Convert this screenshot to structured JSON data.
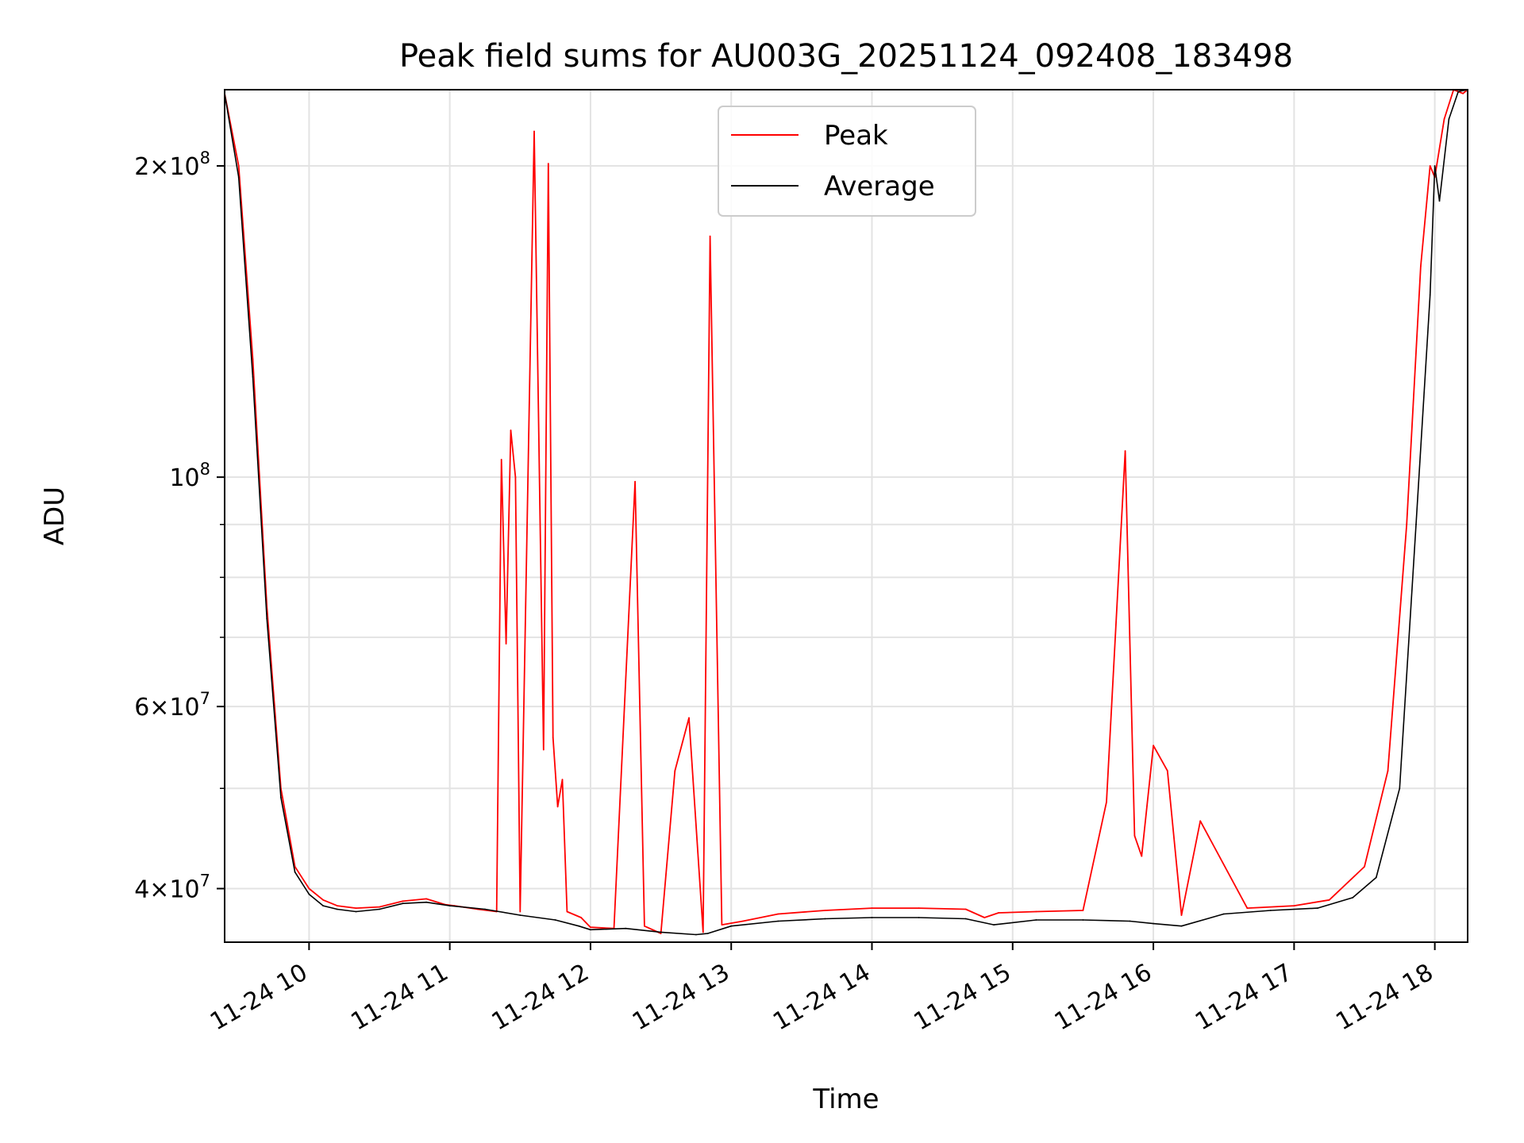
{
  "chart_data": {
    "type": "line",
    "title": "Peak field sums for AU003G_20251124_092408_183498",
    "xlabel": "Time",
    "ylabel": "ADU",
    "yscale": "log",
    "grid": true,
    "legend_position": "top-center",
    "xlim": [
      "2025-11-24 09:24",
      "2025-11-24 18:14"
    ],
    "ylim": [
      35500000,
      237000000
    ],
    "x_ticks": [
      {
        "value": "2025-11-24 10:00",
        "label": "11-24 10"
      },
      {
        "value": "2025-11-24 11:00",
        "label": "11-24 11"
      },
      {
        "value": "2025-11-24 12:00",
        "label": "11-24 12"
      },
      {
        "value": "2025-11-24 13:00",
        "label": "11-24 13"
      },
      {
        "value": "2025-11-24 14:00",
        "label": "11-24 14"
      },
      {
        "value": "2025-11-24 15:00",
        "label": "11-24 15"
      },
      {
        "value": "2025-11-24 16:00",
        "label": "11-24 16"
      },
      {
        "value": "2025-11-24 17:00",
        "label": "11-24 17"
      },
      {
        "value": "2025-11-24 18:00",
        "label": "11-24 18"
      }
    ],
    "y_major_ticks": [
      {
        "value": 40000000,
        "mantissa": "4",
        "exponent": "7"
      },
      {
        "value": 60000000,
        "mantissa": "6",
        "exponent": "7"
      },
      {
        "value": 100000000,
        "mantissa": "",
        "exponent": "8"
      },
      {
        "value": 200000000,
        "mantissa": "2",
        "exponent": "8"
      }
    ],
    "y_minor_ticks": [
      50000000,
      70000000,
      80000000,
      90000000
    ],
    "series": [
      {
        "name": "Peak",
        "color": "#ff0000",
        "x": [
          "2025-11-24 09:24",
          "2025-11-24 09:30",
          "2025-11-24 09:36",
          "2025-11-24 09:42",
          "2025-11-24 09:48",
          "2025-11-24 09:54",
          "2025-11-24 10:00",
          "2025-11-24 10:06",
          "2025-11-24 10:12",
          "2025-11-24 10:20",
          "2025-11-24 10:30",
          "2025-11-24 10:40",
          "2025-11-24 10:50",
          "2025-11-24 10:58",
          "2025-11-24 11:02",
          "2025-11-24 11:12",
          "2025-11-24 11:20",
          "2025-11-24 11:22",
          "2025-11-24 11:24",
          "2025-11-24 11:26",
          "2025-11-24 11:28",
          "2025-11-24 11:30",
          "2025-11-24 11:36",
          "2025-11-24 11:40",
          "2025-11-24 11:42",
          "2025-11-24 11:44",
          "2025-11-24 11:46",
          "2025-11-24 11:48",
          "2025-11-24 11:50",
          "2025-11-24 11:56",
          "2025-11-24 12:00",
          "2025-11-24 12:10",
          "2025-11-24 12:19",
          "2025-11-24 12:23",
          "2025-11-24 12:30",
          "2025-11-24 12:36",
          "2025-11-24 12:42",
          "2025-11-24 12:48",
          "2025-11-24 12:51",
          "2025-11-24 12:56",
          "2025-11-24 13:05",
          "2025-11-24 13:20",
          "2025-11-24 13:40",
          "2025-11-24 14:00",
          "2025-11-24 14:20",
          "2025-11-24 14:40",
          "2025-11-24 14:48",
          "2025-11-24 14:54",
          "2025-11-24 15:10",
          "2025-11-24 15:30",
          "2025-11-24 15:40",
          "2025-11-24 15:48",
          "2025-11-24 15:52",
          "2025-11-24 15:55",
          "2025-11-24 16:00",
          "2025-11-24 16:06",
          "2025-11-24 16:12",
          "2025-11-24 16:20",
          "2025-11-24 16:40",
          "2025-11-24 17:00",
          "2025-11-24 17:15",
          "2025-11-24 17:30",
          "2025-11-24 17:40",
          "2025-11-24 17:48",
          "2025-11-24 17:54",
          "2025-11-24 17:58",
          "2025-11-24 18:00",
          "2025-11-24 18:04",
          "2025-11-24 18:08",
          "2025-11-24 18:12",
          "2025-11-24 18:14"
        ],
        "y": [
          235000000,
          200000000,
          130000000,
          75000000,
          50000000,
          42000000,
          40000000,
          39000000,
          38500000,
          38300000,
          38400000,
          38900000,
          39100000,
          38600000,
          38500000,
          38200000,
          38000000,
          104000000,
          69000000,
          111000000,
          100000000,
          38000000,
          216000000,
          54500000,
          201000000,
          56000000,
          48000000,
          51000000,
          38000000,
          37500000,
          36700000,
          36600000,
          99000000,
          36800000,
          36200000,
          52000000,
          58500000,
          36300000,
          171000000,
          36900000,
          37200000,
          37800000,
          38100000,
          38300000,
          38300000,
          38200000,
          37500000,
          37900000,
          38000000,
          38100000,
          48500000,
          106000000,
          45000000,
          43000000,
          55000000,
          52000000,
          37700000,
          46500000,
          38300000,
          38500000,
          39000000,
          42000000,
          52000000,
          90000000,
          160000000,
          200000000,
          195000000,
          222000000,
          237000000,
          235000000,
          237000000
        ]
      },
      {
        "name": "Average",
        "color": "#000000",
        "x": [
          "2025-11-24 09:24",
          "2025-11-24 09:30",
          "2025-11-24 09:36",
          "2025-11-24 09:42",
          "2025-11-24 09:48",
          "2025-11-24 09:54",
          "2025-11-24 10:00",
          "2025-11-24 10:06",
          "2025-11-24 10:12",
          "2025-11-24 10:20",
          "2025-11-24 10:30",
          "2025-11-24 10:40",
          "2025-11-24 10:50",
          "2025-11-24 11:00",
          "2025-11-24 11:15",
          "2025-11-24 11:30",
          "2025-11-24 11:45",
          "2025-11-24 11:55",
          "2025-11-24 12:00",
          "2025-11-24 12:15",
          "2025-11-24 12:30",
          "2025-11-24 12:45",
          "2025-11-24 12:50",
          "2025-11-24 13:00",
          "2025-11-24 13:20",
          "2025-11-24 13:40",
          "2025-11-24 14:00",
          "2025-11-24 14:20",
          "2025-11-24 14:40",
          "2025-11-24 14:52",
          "2025-11-24 15:10",
          "2025-11-24 15:30",
          "2025-11-24 15:50",
          "2025-11-24 16:00",
          "2025-11-24 16:12",
          "2025-11-24 16:30",
          "2025-11-24 16:50",
          "2025-11-24 17:10",
          "2025-11-24 17:25",
          "2025-11-24 17:35",
          "2025-11-24 17:45",
          "2025-11-24 17:52",
          "2025-11-24 17:58",
          "2025-11-24 18:00",
          "2025-11-24 18:02",
          "2025-11-24 18:06",
          "2025-11-24 18:10",
          "2025-11-24 18:14"
        ],
        "y": [
          235000000,
          195000000,
          125000000,
          73000000,
          49000000,
          41500000,
          39500000,
          38500000,
          38200000,
          38000000,
          38200000,
          38700000,
          38800000,
          38500000,
          38200000,
          37700000,
          37300000,
          36800000,
          36500000,
          36600000,
          36300000,
          36100000,
          36200000,
          36800000,
          37200000,
          37400000,
          37500000,
          37500000,
          37400000,
          36900000,
          37300000,
          37300000,
          37200000,
          37000000,
          36800000,
          37800000,
          38100000,
          38300000,
          39200000,
          41000000,
          50000000,
          90000000,
          150000000,
          200000000,
          185000000,
          222000000,
          236000000,
          237000000
        ]
      }
    ]
  }
}
